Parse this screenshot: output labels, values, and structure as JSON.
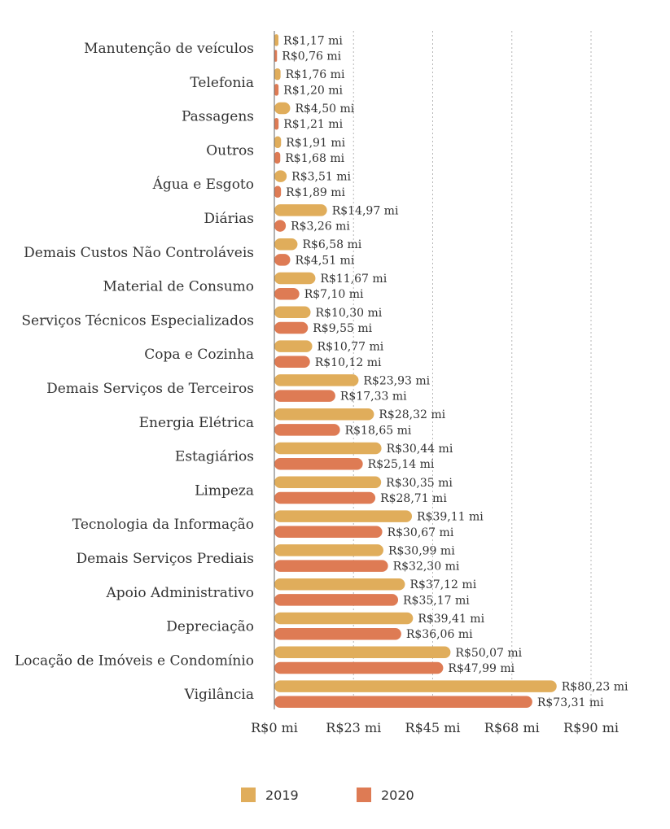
{
  "chart_data": {
    "type": "bar",
    "orientation": "horizontal",
    "categories": [
      "Manutenção de veículos",
      "Telefonia",
      "Passagens",
      "Outros",
      "Água e Esgoto",
      "Diárias",
      "Demais Custos Não Controláveis",
      "Material de Consumo",
      "Serviços Técnicos Especializados",
      "Copa e Cozinha",
      "Demais Serviços de Terceiros",
      "Energia Elétrica",
      "Estagiários",
      "Limpeza",
      "Tecnologia da Informação",
      "Demais Serviços Prediais",
      "Apoio Administrativo",
      "Depreciação",
      "Locação de Imóveis e Condomínio",
      "Vigilância"
    ],
    "series": [
      {
        "name": "2019",
        "color": "#e0ad5b",
        "values": [
          1.17,
          1.76,
          4.5,
          1.91,
          3.51,
          14.97,
          6.58,
          11.67,
          10.3,
          10.77,
          23.93,
          28.32,
          30.44,
          30.35,
          39.11,
          30.99,
          37.12,
          39.41,
          50.07,
          80.23
        ],
        "labels": [
          "R$1,17 mi",
          "R$1,76 mi",
          "R$4,50 mi",
          "R$1,91 mi",
          "R$3,51 mi",
          "R$14,97 mi",
          "R$6,58 mi",
          "R$11,67 mi",
          "R$10,30 mi",
          "R$10,77 mi",
          "R$23,93 mi",
          "R$28,32 mi",
          "R$30,44 mi",
          "R$30,35 mi",
          "R$39,11 mi",
          "R$30,99 mi",
          "R$37,12 mi",
          "R$39,41 mi",
          "R$50,07 mi",
          "R$80,23 mi"
        ]
      },
      {
        "name": "2020",
        "color": "#de7b54",
        "values": [
          0.76,
          1.2,
          1.21,
          1.68,
          1.89,
          3.26,
          4.51,
          7.1,
          9.55,
          10.12,
          17.33,
          18.65,
          25.14,
          28.71,
          30.67,
          32.3,
          35.17,
          36.06,
          47.99,
          73.31
        ],
        "labels": [
          "R$0,76 mi",
          "R$1,20 mi",
          "R$1,21 mi",
          "R$1,68 mi",
          "R$1,89 mi",
          "R$3,26 mi",
          "R$4,51 mi",
          "R$7,10 mi",
          "R$9,55 mi",
          "R$10,12 mi",
          "R$17,33 mi",
          "R$18,65 mi",
          "R$25,14 mi",
          "R$28,71 mi",
          "R$30,67 mi",
          "R$32,30 mi",
          "R$35,17 mi",
          "R$36,06 mi",
          "R$47,99 mi",
          "R$73,31 mi"
        ]
      }
    ],
    "x_ticks": [
      0,
      22.5,
      45,
      67.5,
      90
    ],
    "x_tick_labels": [
      "R$0 mi",
      "R$23 mi",
      "R$45 mi",
      "R$68 mi",
      "R$90 mi"
    ],
    "xlim": [
      0,
      90
    ],
    "grid": "vertical dotted",
    "legend": {
      "placement": "bottom-center",
      "entries": [
        "2019",
        "2020"
      ]
    }
  }
}
